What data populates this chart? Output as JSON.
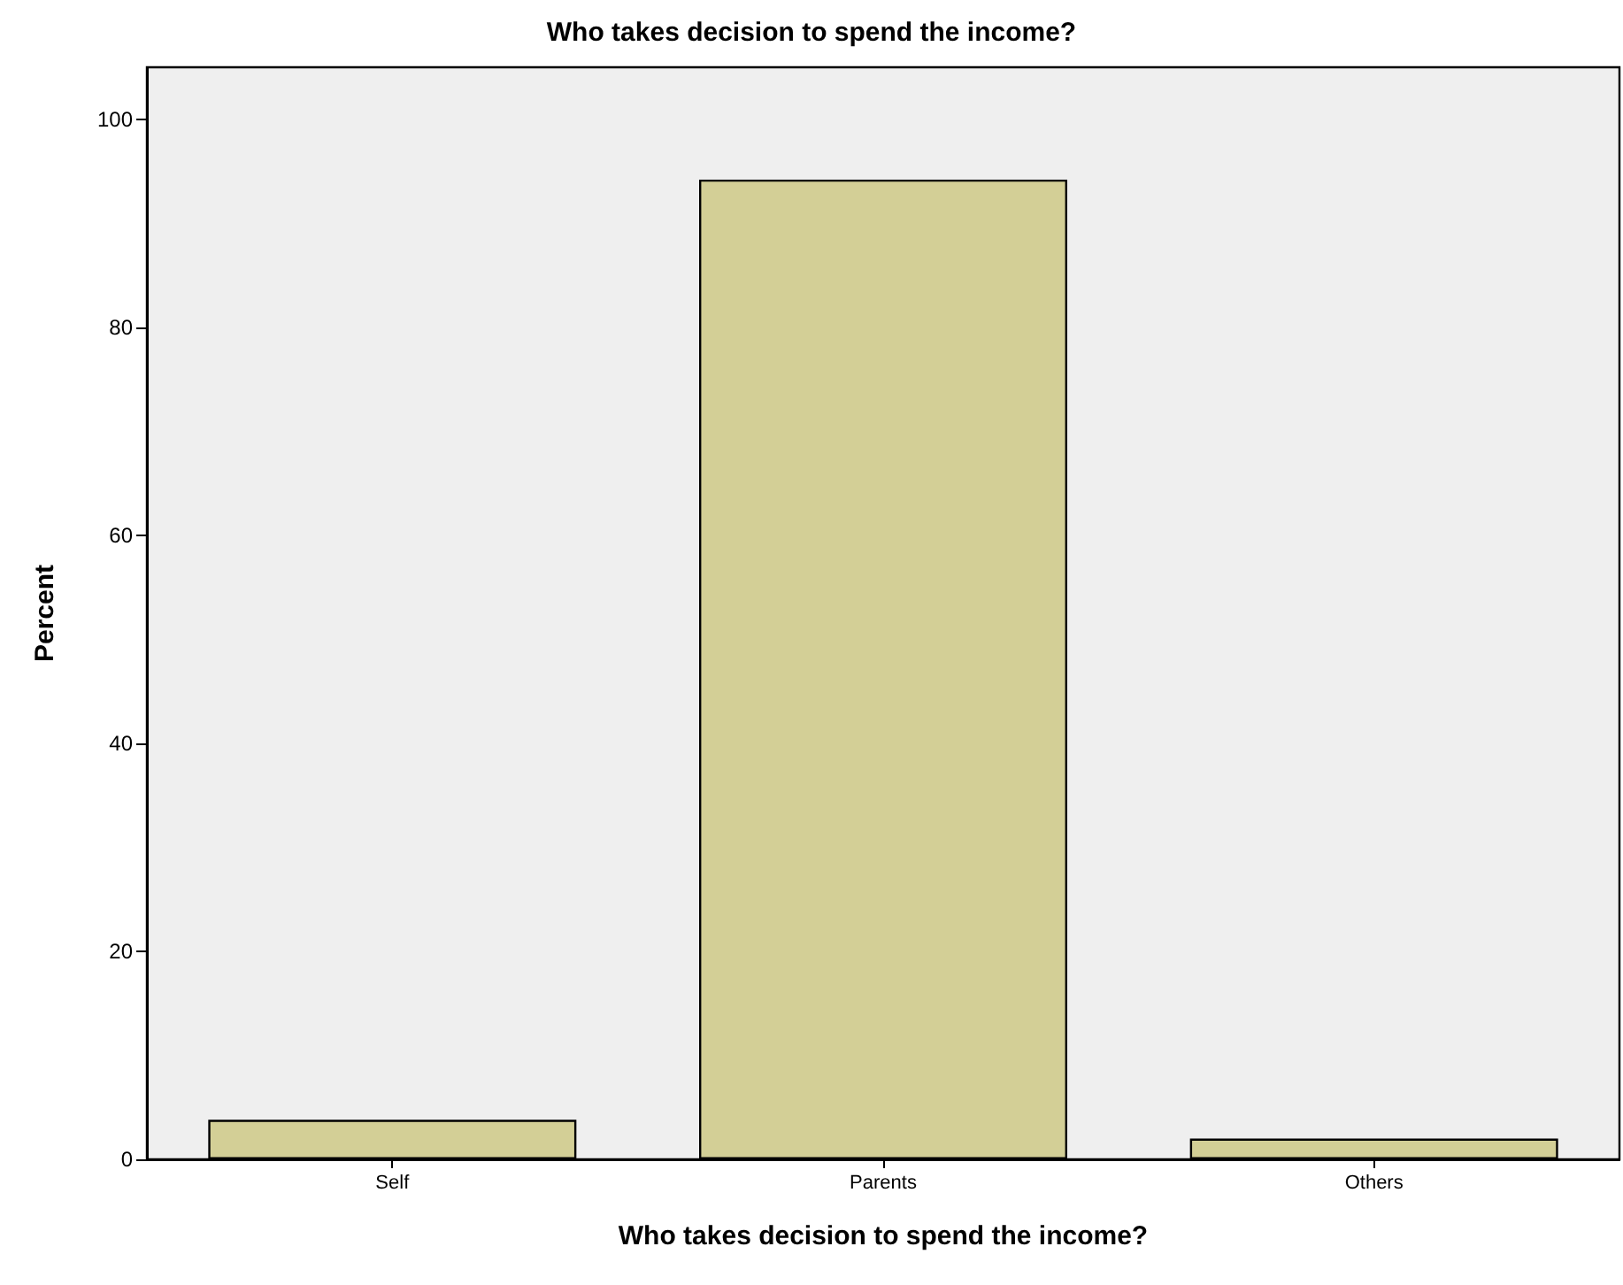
{
  "chart_data": {
    "type": "bar",
    "title": "Who takes decision to spend the income?",
    "xlabel": "Who takes decision to spend the income?",
    "ylabel": "Percent",
    "categories": [
      "Self",
      "Parents",
      "Others"
    ],
    "values": [
      3.8,
      94.2,
      2.0
    ],
    "color": "#d3cf96",
    "ylim": [
      0,
      105
    ],
    "yticks": [
      0,
      20,
      40,
      60,
      80,
      100
    ],
    "grid": false
  }
}
